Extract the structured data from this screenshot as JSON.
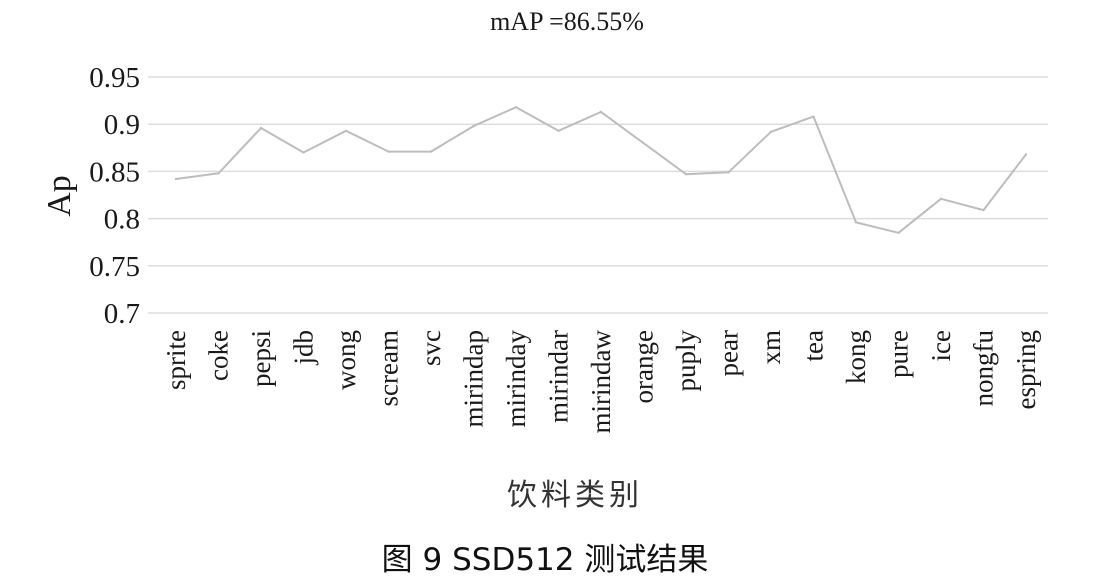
{
  "chart_data": {
    "type": "line",
    "title": "mAP =86.55%",
    "xlabel": "饮料类别",
    "ylabel": "Ap",
    "caption": "图 9   SSD512 测试结果",
    "ylim": [
      0.7,
      0.95
    ],
    "yticks": [
      "0.95",
      "0.9",
      "0.85",
      "0.8",
      "0.75",
      "0.7"
    ],
    "categories": [
      "sprite",
      "coke",
      "pepsi",
      "jdb",
      "wong",
      "scream",
      "svc",
      "mirindap",
      "mirinday",
      "mirindar",
      "mirindaw",
      "orange",
      "puply",
      "pear",
      "xm",
      "tea",
      "kong",
      "pure",
      "ice",
      "nongfu",
      "espring"
    ],
    "series": [
      {
        "values": [
          0.842,
          0.848,
          0.896,
          0.87,
          0.893,
          0.871,
          0.871,
          0.898,
          0.918,
          0.893,
          0.913,
          0.88,
          0.847,
          0.849,
          0.892,
          0.908,
          0.796,
          0.785,
          0.821,
          0.809,
          0.868
        ]
      }
    ],
    "grid": true,
    "legend": "none",
    "colors": {
      "line": "#bdbdbd",
      "grid": "#dddddd",
      "text": "#1a1a1a"
    }
  }
}
